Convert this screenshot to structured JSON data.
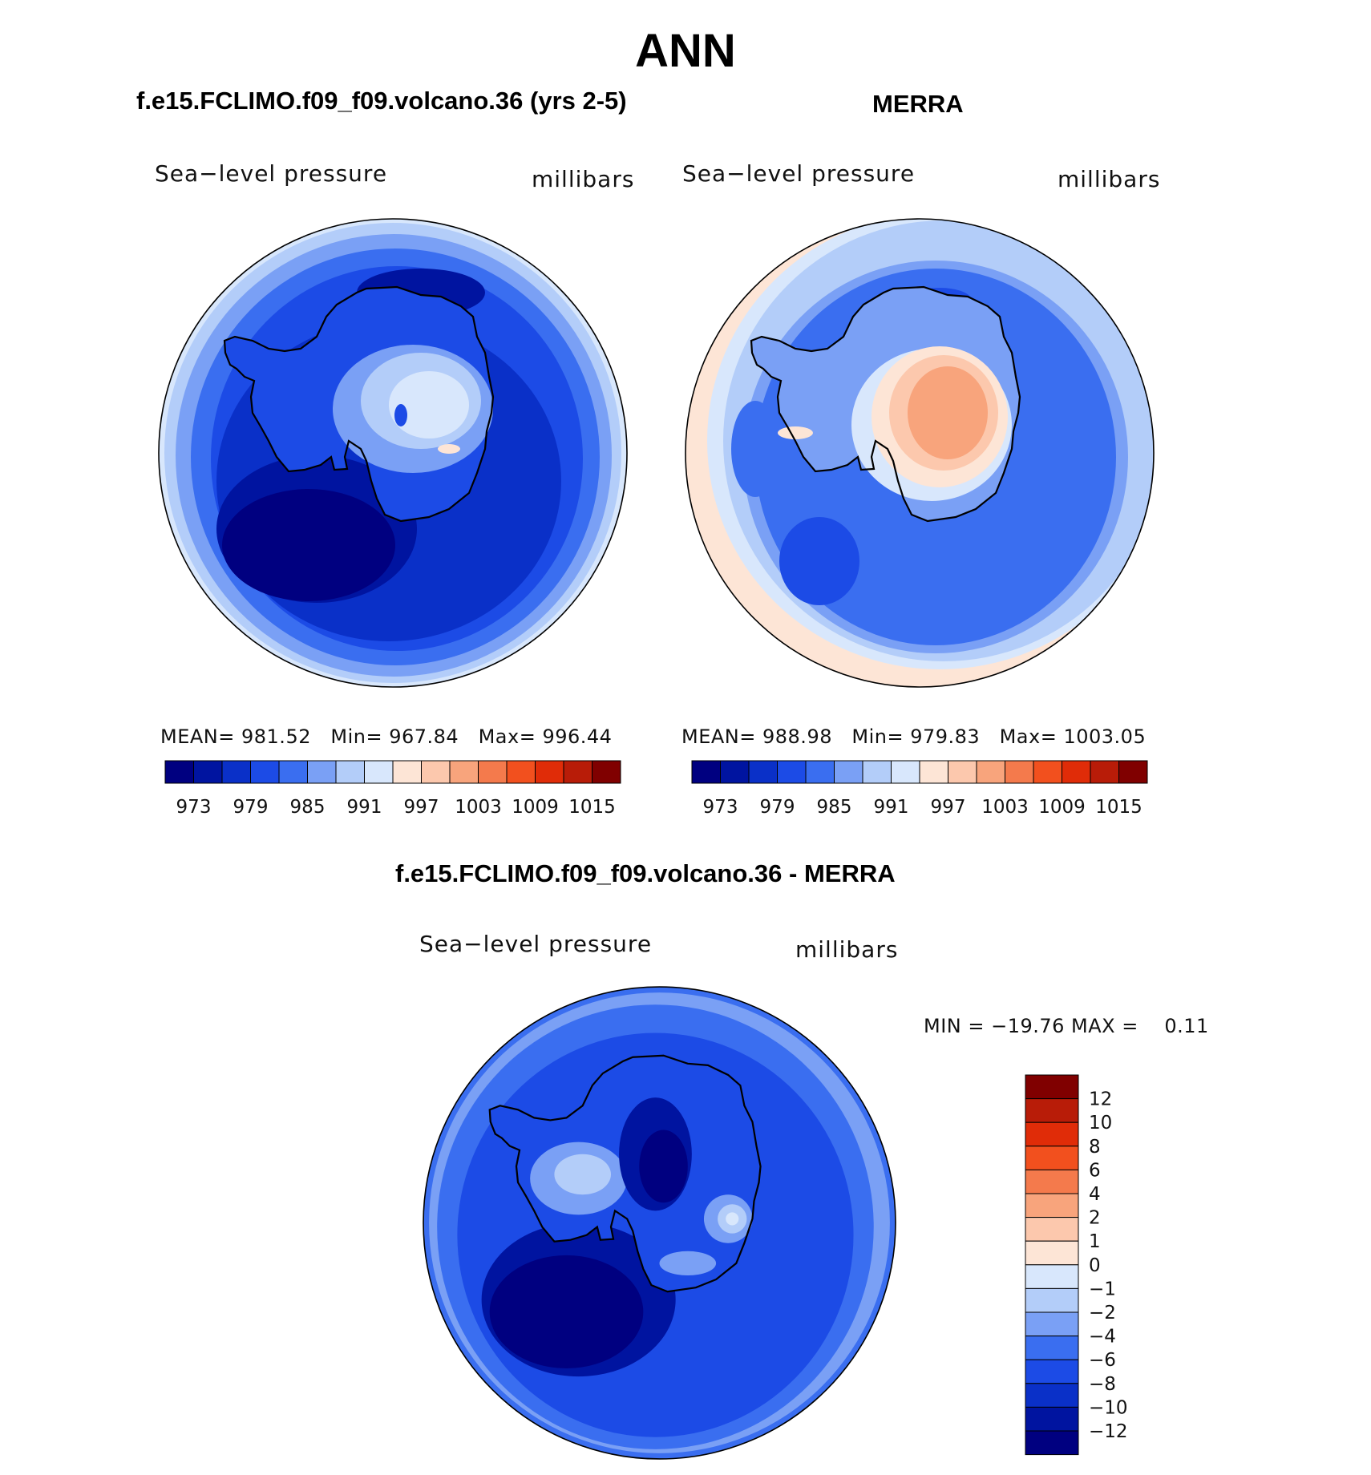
{
  "figure": {
    "title": "ANN"
  },
  "colors": {
    "levels_main": [
      "#000080",
      "#0014a0",
      "#0a30c8",
      "#1c4be6",
      "#3a6ef0",
      "#7aa0f5",
      "#b3cdf9",
      "#d8e7fc",
      "#fde5d6",
      "#fcc8ad",
      "#f8a47c",
      "#f47a4c",
      "#f2501e",
      "#e02c08",
      "#b81c08",
      "#800000"
    ],
    "levels_diff": [
      "#000080",
      "#0014a0",
      "#0a30c8",
      "#1c4be6",
      "#3a6ef0",
      "#7aa0f5",
      "#b3cdf9",
      "#d8e7fc",
      "#fde5d6",
      "#fcc8ad",
      "#f8a47c",
      "#f47a4c",
      "#f2501e",
      "#e02c08",
      "#b81c08",
      "#800000"
    ]
  },
  "chart_data": [
    {
      "type": "heatmap",
      "projection": "south-polar-stereographic",
      "title": "f.e15.FCLIMO.f09_f09.volcano.36 (yrs 2-5)",
      "left_label": "Sea−level pressure",
      "right_label": "millibars",
      "stats": {
        "mean_label": "MEAN=",
        "mean": "981.52",
        "min_label": "Min=",
        "min": "967.84",
        "max_label": "Max=",
        "max": "996.44"
      },
      "colorbar_labels": [
        "973",
        "979",
        "985",
        "991",
        "997",
        "1003",
        "1009",
        "1015"
      ],
      "colorbar_orientation": "horizontal"
    },
    {
      "type": "heatmap",
      "projection": "south-polar-stereographic",
      "title": "MERRA",
      "left_label": "Sea−level pressure",
      "right_label": "millibars",
      "stats": {
        "mean_label": "MEAN=",
        "mean": "988.98",
        "min_label": "Min=",
        "min": "979.83",
        "max_label": "Max=",
        "max": "1003.05"
      },
      "colorbar_labels": [
        "973",
        "979",
        "985",
        "991",
        "997",
        "1003",
        "1009",
        "1015"
      ],
      "colorbar_orientation": "horizontal"
    },
    {
      "type": "heatmap",
      "projection": "south-polar-stereographic",
      "title": "f.e15.FCLIMO.f09_f09.volcano.36 - MERRA",
      "left_label": "Sea−level pressure",
      "right_label": "millibars",
      "stats_text": "MIN = −19.76 MAX =    0.11",
      "colorbar_labels": [
        "12",
        "10",
        "8",
        "6",
        "4",
        "2",
        "1",
        "0",
        "−1",
        "−2",
        "−4",
        "−6",
        "−8",
        "−10",
        "−12"
      ],
      "colorbar_orientation": "vertical"
    }
  ]
}
